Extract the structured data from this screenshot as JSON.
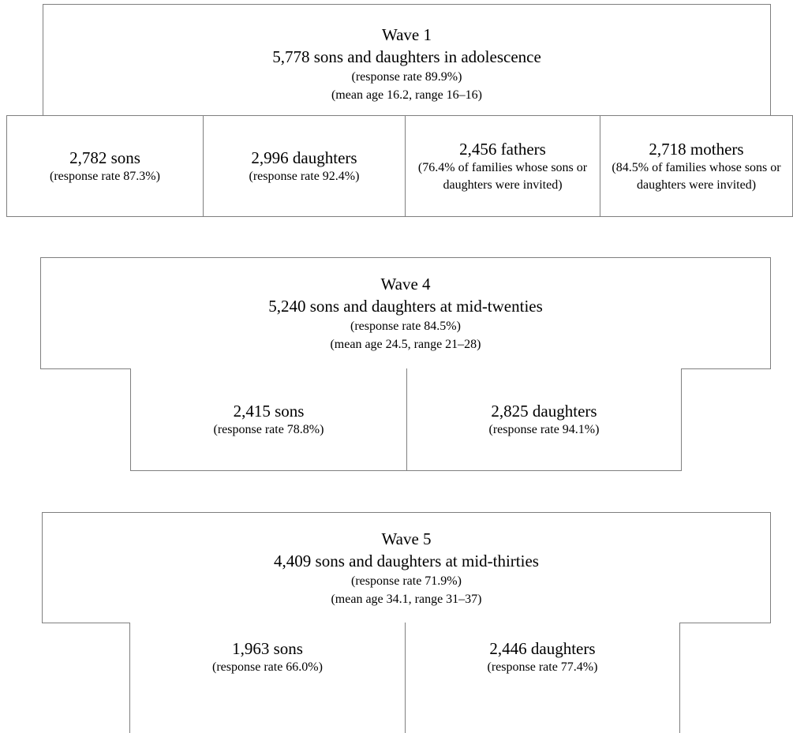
{
  "wave1": {
    "title": "Wave 1",
    "summary": "5,778 sons and daughters in adolescence",
    "response": "(response rate 89.9%)",
    "age": "(mean age 16.2, range 16–16)",
    "sons": {
      "count": "2,782 sons",
      "detail": "(response rate 87.3%)"
    },
    "daughters": {
      "count": "2,996 daughters",
      "detail": "(response rate 92.4%)"
    },
    "fathers": {
      "count": "2,456 fathers",
      "detail": "(76.4% of families whose sons or daughters were invited)"
    },
    "mothers": {
      "count": "2,718 mothers",
      "detail": "(84.5% of families whose sons or daughters were invited)"
    }
  },
  "wave4": {
    "title": "Wave 4",
    "summary": "5,240 sons and daughters at mid-twenties",
    "response": "(response rate 84.5%)",
    "age": "(mean age 24.5, range 21–28)",
    "sons": {
      "count": "2,415 sons",
      "detail": "(response rate 78.8%)"
    },
    "daughters": {
      "count": "2,825 daughters",
      "detail": "(response rate 94.1%)"
    }
  },
  "wave5": {
    "title": "Wave 5",
    "summary": "4,409 sons and daughters at mid-thirties",
    "response": "(response rate 71.9%)",
    "age": "(mean age 34.1, range 31–37)",
    "sons": {
      "count": "1,963 sons",
      "detail": "(response rate 66.0%)"
    },
    "daughters": {
      "count": "2,446 daughters",
      "detail": "(response rate 77.4%)"
    }
  }
}
